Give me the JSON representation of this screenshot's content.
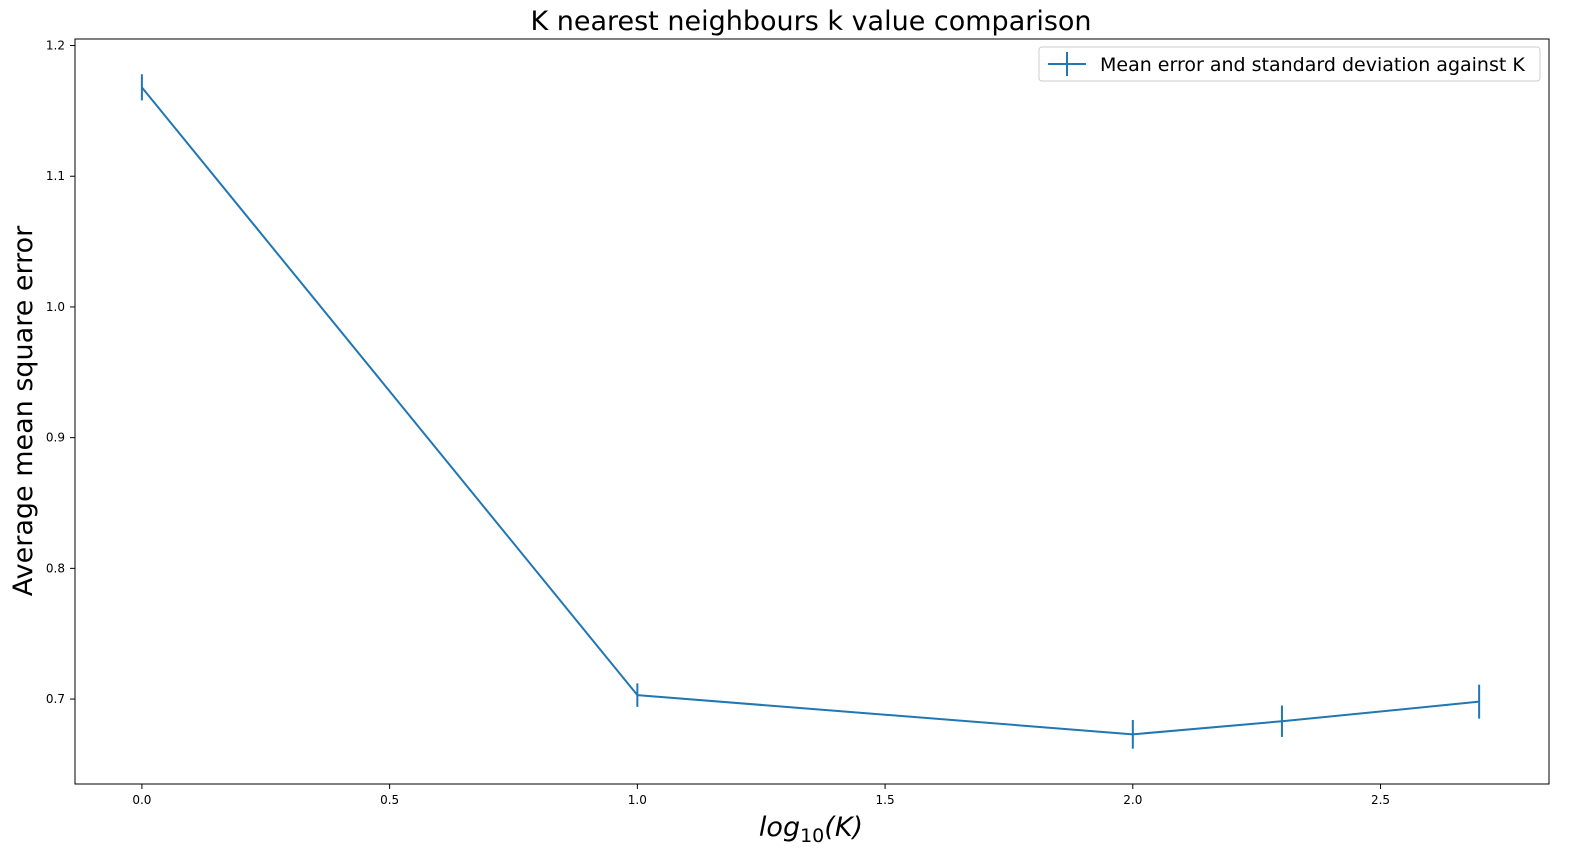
{
  "chart_data": {
    "type": "line",
    "title": "K nearest neighbours k value comparison",
    "xlabel": {
      "prefix": "log",
      "subscript": "10",
      "argument": "(K)"
    },
    "ylabel": "Average mean square error",
    "xlim": [
      -0.135,
      2.84
    ],
    "ylim": [
      0.635,
      1.205
    ],
    "xticks": [
      {
        "value": 0.0,
        "label": "0.0"
      },
      {
        "value": 0.5,
        "label": "0.5"
      },
      {
        "value": 1.0,
        "label": "1.0"
      },
      {
        "value": 1.5,
        "label": "1.5"
      },
      {
        "value": 2.0,
        "label": "2.0"
      },
      {
        "value": 2.5,
        "label": "2.5"
      }
    ],
    "yticks": [
      {
        "value": 0.7,
        "label": "0.7"
      },
      {
        "value": 0.8,
        "label": "0.8"
      },
      {
        "value": 0.9,
        "label": "0.9"
      },
      {
        "value": 1.0,
        "label": "1.0"
      },
      {
        "value": 1.1,
        "label": "1.1"
      },
      {
        "value": 1.2,
        "label": "1.2"
      }
    ],
    "grid": false,
    "legend_position": "top-right",
    "series": [
      {
        "name": "Mean error and standard deviation against K",
        "color": "#1f77b4",
        "x": [
          0.0,
          1.0,
          2.0,
          2.301,
          2.699
        ],
        "y": [
          1.168,
          0.703,
          0.673,
          0.683,
          0.698
        ],
        "yerr": [
          0.01,
          0.009,
          0.011,
          0.012,
          0.013
        ]
      }
    ]
  }
}
